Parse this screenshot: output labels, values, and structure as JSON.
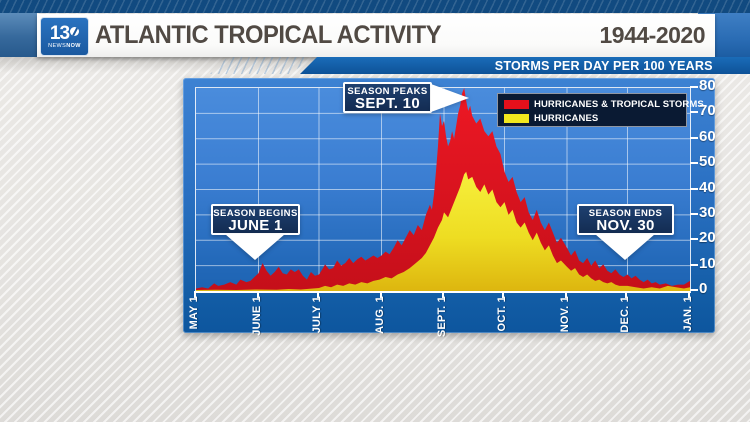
{
  "header": {
    "station": {
      "number": "13",
      "news": "NEWS",
      "now": "NOW"
    },
    "title": "ATLANTIC TROPICAL ACTIVITY",
    "years": "1944-2020",
    "subtitle": "STORMS PER DAY PER 100 YEARS"
  },
  "callouts": {
    "begins": {
      "line1": "SEASON BEGINS",
      "line2": "JUNE 1"
    },
    "peaks": {
      "line1": "SEASON PEAKS",
      "line2": "SEPT. 10"
    },
    "ends": {
      "line1": "SEASON ENDS",
      "line2": "NOV. 30"
    }
  },
  "chart_data": {
    "type": "area",
    "title": "ATLANTIC TROPICAL ACTIVITY",
    "subtitle": "STORMS PER DAY PER 100 YEARS",
    "period": "1944-2020",
    "x_axis": {
      "unit": "days since May 1",
      "range": [
        0,
        245
      ],
      "ticks": [
        {
          "label": "MAY 1",
          "day": 0
        },
        {
          "label": "JUNE 1",
          "day": 31
        },
        {
          "label": "JULY 1",
          "day": 61
        },
        {
          "label": "AUG. 1",
          "day": 92
        },
        {
          "label": "SEPT. 1",
          "day": 123
        },
        {
          "label": "OCT. 1",
          "day": 153
        },
        {
          "label": "NOV. 1",
          "day": 184
        },
        {
          "label": "DEC. 1",
          "day": 214
        },
        {
          "label": "JAN. 1",
          "day": 245
        }
      ]
    },
    "y_axis": {
      "min": 0,
      "max": 80,
      "step": 10,
      "grid": true,
      "side": "right"
    },
    "legend_position": "top-right",
    "annotations": [
      {
        "label": "SEASON BEGINS",
        "value": "JUNE 1",
        "day": 31
      },
      {
        "label": "SEASON PEAKS",
        "value": "SEPT. 10",
        "day": 132
      },
      {
        "label": "SEASON ENDS",
        "value": "NOV. 30",
        "day": 213
      }
    ],
    "series": [
      {
        "name": "HURRICANES & TROPICAL STORMS",
        "color": "#e5101b",
        "points": [
          [
            0,
            1
          ],
          [
            3,
            1.5
          ],
          [
            6,
            1
          ],
          [
            9,
            3
          ],
          [
            11,
            2
          ],
          [
            14,
            2.5
          ],
          [
            17,
            3.5
          ],
          [
            20,
            2.5
          ],
          [
            22,
            4.5
          ],
          [
            25,
            3.5
          ],
          [
            27,
            4
          ],
          [
            29,
            5.5
          ],
          [
            31,
            7
          ],
          [
            33,
            11
          ],
          [
            35,
            8
          ],
          [
            37,
            6
          ],
          [
            39,
            7.5
          ],
          [
            41,
            9.5
          ],
          [
            43,
            7
          ],
          [
            45,
            6.5
          ],
          [
            47,
            8.5
          ],
          [
            49,
            7.5
          ],
          [
            51,
            8.5
          ],
          [
            53,
            6
          ],
          [
            55,
            4.5
          ],
          [
            57,
            7.5
          ],
          [
            59,
            6
          ],
          [
            61,
            6.5
          ],
          [
            63,
            9
          ],
          [
            64,
            10.5
          ],
          [
            66,
            8.5
          ],
          [
            68,
            9
          ],
          [
            70,
            12
          ],
          [
            72,
            10
          ],
          [
            74,
            11
          ],
          [
            76,
            13
          ],
          [
            78,
            11
          ],
          [
            80,
            12.5
          ],
          [
            82,
            13.5
          ],
          [
            84,
            12
          ],
          [
            86,
            13
          ],
          [
            88,
            14
          ],
          [
            90,
            13
          ],
          [
            92,
            14
          ],
          [
            94,
            15.5
          ],
          [
            96,
            14.5
          ],
          [
            98,
            17
          ],
          [
            100,
            20
          ],
          [
            102,
            18
          ],
          [
            104,
            21
          ],
          [
            106,
            24
          ],
          [
            108,
            22
          ],
          [
            110,
            26
          ],
          [
            112,
            24
          ],
          [
            114,
            30
          ],
          [
            116,
            34
          ],
          [
            117,
            32
          ],
          [
            118,
            38
          ],
          [
            119,
            47
          ],
          [
            120,
            57
          ],
          [
            121,
            70
          ],
          [
            122,
            65
          ],
          [
            123,
            67
          ],
          [
            124,
            61
          ],
          [
            125,
            57
          ],
          [
            126,
            59
          ],
          [
            127,
            63
          ],
          [
            128,
            60
          ],
          [
            129,
            65
          ],
          [
            130,
            70
          ],
          [
            131,
            73
          ],
          [
            132,
            78
          ],
          [
            133,
            80
          ],
          [
            134,
            75
          ],
          [
            135,
            71
          ],
          [
            136,
            73
          ],
          [
            137,
            69
          ],
          [
            139,
            66
          ],
          [
            141,
            68
          ],
          [
            143,
            63
          ],
          [
            145,
            61
          ],
          [
            147,
            63
          ],
          [
            149,
            57
          ],
          [
            151,
            54
          ],
          [
            153,
            47
          ],
          [
            155,
            43
          ],
          [
            157,
            45
          ],
          [
            159,
            39
          ],
          [
            161,
            35
          ],
          [
            163,
            37
          ],
          [
            165,
            31
          ],
          [
            167,
            28
          ],
          [
            169,
            32
          ],
          [
            171,
            27
          ],
          [
            173,
            24
          ],
          [
            175,
            27
          ],
          [
            177,
            23
          ],
          [
            179,
            19
          ],
          [
            181,
            21
          ],
          [
            184,
            17
          ],
          [
            186,
            14
          ],
          [
            188,
            16
          ],
          [
            190,
            12
          ],
          [
            192,
            11
          ],
          [
            194,
            13
          ],
          [
            196,
            10
          ],
          [
            198,
            12
          ],
          [
            200,
            9
          ],
          [
            202,
            10.5
          ],
          [
            204,
            8
          ],
          [
            206,
            7
          ],
          [
            208,
            8.5
          ],
          [
            210,
            6.5
          ],
          [
            212,
            5.5
          ],
          [
            214,
            6.5
          ],
          [
            216,
            5
          ],
          [
            218,
            6
          ],
          [
            220,
            4.5
          ],
          [
            222,
            3.5
          ],
          [
            224,
            4.5
          ],
          [
            226,
            3
          ],
          [
            228,
            3.5
          ],
          [
            230,
            2.5
          ],
          [
            233,
            3
          ],
          [
            236,
            2
          ],
          [
            239,
            2.5
          ],
          [
            242,
            2.5
          ],
          [
            245,
            4
          ]
        ]
      },
      {
        "name": "HURRICANES",
        "color": "#f2e71e",
        "points": [
          [
            0,
            0.4
          ],
          [
            10,
            0.5
          ],
          [
            20,
            0.4
          ],
          [
            30,
            0.6
          ],
          [
            40,
            0.5
          ],
          [
            46,
            0.8
          ],
          [
            52,
            0.6
          ],
          [
            58,
            1
          ],
          [
            61,
            1.2
          ],
          [
            64,
            2
          ],
          [
            67,
            1.5
          ],
          [
            70,
            2.5
          ],
          [
            73,
            2
          ],
          [
            76,
            3
          ],
          [
            79,
            2.5
          ],
          [
            82,
            3.5
          ],
          [
            85,
            3
          ],
          [
            88,
            4
          ],
          [
            91,
            4.5
          ],
          [
            94,
            5.5
          ],
          [
            97,
            5
          ],
          [
            100,
            6.5
          ],
          [
            103,
            7.5
          ],
          [
            106,
            9
          ],
          [
            109,
            11
          ],
          [
            112,
            13
          ],
          [
            114,
            15
          ],
          [
            116,
            18
          ],
          [
            118,
            21
          ],
          [
            120,
            25
          ],
          [
            122,
            28
          ],
          [
            123,
            31
          ],
          [
            125,
            29
          ],
          [
            127,
            33
          ],
          [
            129,
            37
          ],
          [
            131,
            41
          ],
          [
            133,
            46
          ],
          [
            134,
            47
          ],
          [
            135,
            44
          ],
          [
            137,
            45
          ],
          [
            139,
            41
          ],
          [
            141,
            39
          ],
          [
            143,
            42
          ],
          [
            145,
            38
          ],
          [
            147,
            40
          ],
          [
            149,
            35
          ],
          [
            151,
            33
          ],
          [
            153,
            35
          ],
          [
            155,
            30
          ],
          [
            157,
            32
          ],
          [
            159,
            27
          ],
          [
            161,
            25
          ],
          [
            163,
            27
          ],
          [
            165,
            23
          ],
          [
            167,
            20
          ],
          [
            169,
            23
          ],
          [
            171,
            19
          ],
          [
            173,
            16
          ],
          [
            175,
            18
          ],
          [
            177,
            14
          ],
          [
            179,
            11
          ],
          [
            181,
            12
          ],
          [
            184,
            9.5
          ],
          [
            186,
            8
          ],
          [
            188,
            9
          ],
          [
            190,
            6.5
          ],
          [
            192,
            5.5
          ],
          [
            194,
            6.5
          ],
          [
            196,
            5
          ],
          [
            198,
            4
          ],
          [
            200,
            4.5
          ],
          [
            202,
            3.5
          ],
          [
            204,
            3
          ],
          [
            206,
            3.5
          ],
          [
            208,
            2.5
          ],
          [
            210,
            2
          ],
          [
            214,
            2
          ],
          [
            218,
            1.5
          ],
          [
            222,
            1
          ],
          [
            226,
            1.5
          ],
          [
            230,
            1
          ],
          [
            234,
            2
          ],
          [
            238,
            1.5
          ],
          [
            242,
            1
          ],
          [
            245,
            1.5
          ]
        ]
      }
    ],
    "colors": {
      "red_top": "#ee1824",
      "red_bottom": "#c50f1a",
      "yellow_top": "#f6ef3c",
      "yellow_bottom": "#ddb60f",
      "plot_blue": "#2e74c8",
      "panel_blue": "#135da6",
      "navy_box": "#132c52"
    }
  }
}
